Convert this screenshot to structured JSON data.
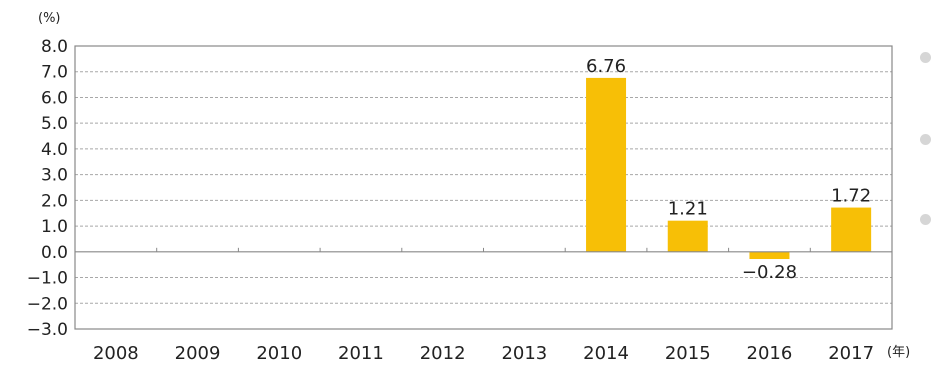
{
  "chart_data": {
    "type": "bar",
    "y_unit": "(%)",
    "x_unit": "(年)",
    "categories": [
      "2008",
      "2009",
      "2010",
      "2011",
      "2012",
      "2013",
      "2014",
      "2015",
      "2016",
      "2017"
    ],
    "values": [
      null,
      null,
      null,
      null,
      null,
      null,
      6.76,
      1.21,
      -0.28,
      1.72
    ],
    "data_labels": [
      "",
      "",
      "",
      "",
      "",
      "",
      "6.76",
      "1.21",
      "−0.28",
      "1.72"
    ],
    "ylim": [
      -3.0,
      8.0
    ],
    "yticks": [
      "8.0",
      "7.0",
      "6.0",
      "5.0",
      "4.0",
      "3.0",
      "2.0",
      "1.0",
      "0.0",
      "−1.0",
      "−2.0",
      "−3.0"
    ],
    "ytick_values": [
      8,
      7,
      6,
      5,
      4,
      3,
      2,
      1,
      0,
      -1,
      -2,
      -3
    ],
    "grid": true,
    "bar_color": "#f7bf06",
    "grid_color": "#a8a8a8",
    "axis_color": "#888888"
  }
}
